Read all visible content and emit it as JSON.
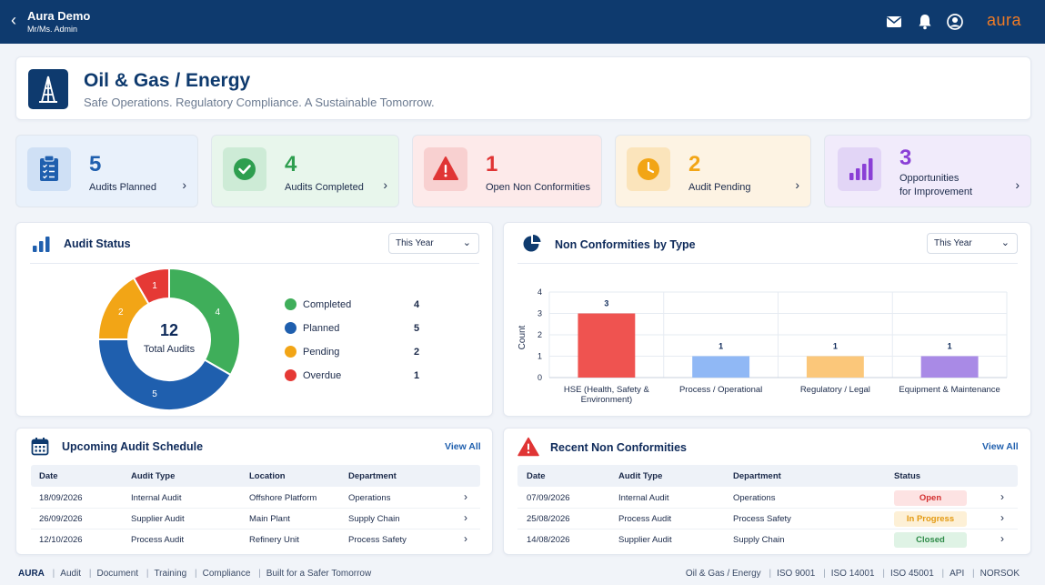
{
  "topbar": {
    "title": "Aura Demo",
    "subtitle": "Mr/Ms. Admin",
    "brand": "aura",
    "icons": [
      "mail-icon",
      "bell-icon",
      "user-icon"
    ]
  },
  "header": {
    "title": "Oil & Gas / Energy",
    "tagline": "Safe Operations. Regulatory Compliance. A Sustainable Tomorrow."
  },
  "kpis": [
    {
      "value": "5",
      "label": "Audits Planned",
      "label2": "",
      "color": "#1f5fae",
      "bg": "#e9f1fb",
      "icon_bg": "#cfe0f5",
      "icon": "clipboard-icon"
    },
    {
      "value": "4",
      "label": "Audits Completed",
      "label2": "",
      "color": "#2e9e4f",
      "bg": "#e8f6ec",
      "icon_bg": "#cdebd6",
      "icon": "check-circle-icon"
    },
    {
      "value": "1",
      "label": "Open Non Conformities",
      "label2": "",
      "color": "#e03535",
      "bg": "#fdeaea",
      "icon_bg": "#f8d0d0",
      "icon": "warning-icon"
    },
    {
      "value": "2",
      "label": "Audit Pending",
      "label2": "",
      "color": "#f2a516",
      "bg": "#fdf3e3",
      "icon_bg": "#fbe4bb",
      "icon": "clock-icon"
    },
    {
      "value": "3",
      "label": "Opportunities",
      "label2": "for Improvement",
      "color": "#8a3fd6",
      "bg": "#f1ebfb",
      "icon_bg": "#e2d5f6",
      "icon": "bar-chart-icon"
    }
  ],
  "audit_status": {
    "title": "Audit Status",
    "filter": "This Year",
    "center_value": "12",
    "center_label": "Total Audits"
  },
  "nc_by_type": {
    "title": "Non Conformities by Type",
    "filter": "This Year"
  },
  "chart_data": [
    {
      "type": "pie",
      "categories": [
        "Completed",
        "Planned",
        "Pending",
        "Overdue"
      ],
      "values": [
        4,
        5,
        2,
        1
      ],
      "colors": [
        "#3fae5a",
        "#1f5fae",
        "#f2a516",
        "#e53935"
      ],
      "title": "Audit Status",
      "legend": "right"
    },
    {
      "type": "bar",
      "categories": [
        "HSE (Health, Safety & Environment)",
        "Process / Operational",
        "Regulatory / Legal",
        "Equipment & Maintenance"
      ],
      "category_lines": [
        [
          "HSE (Health, Safety &",
          "Environment)"
        ],
        [
          "Process / Operational"
        ],
        [
          "Regulatory / Legal"
        ],
        [
          "Equipment & Maintenance"
        ]
      ],
      "values": [
        3,
        1,
        1,
        1
      ],
      "colors": [
        "#ef5350",
        "#90b8f5",
        "#fbc77a",
        "#a98ae6"
      ],
      "title": "Non Conformities by Type",
      "xlabel": "",
      "ylabel": "Count",
      "ylim": [
        0,
        4
      ],
      "yticks": [
        "0",
        "1",
        "2",
        "3",
        "4"
      ],
      "grid": true
    }
  ],
  "schedule": {
    "title": "Upcoming Audit Schedule",
    "view_all": "View All",
    "headers": [
      "Date",
      "Audit Type",
      "Location",
      "Department"
    ],
    "rows": [
      [
        "18/09/2026",
        "Internal Audit",
        "Offshore Platform",
        "Operations"
      ],
      [
        "26/09/2026",
        "Supplier Audit",
        "Main Plant",
        "Supply Chain"
      ],
      [
        "12/10/2026",
        "Process Audit",
        "Refinery Unit",
        "Process Safety"
      ]
    ]
  },
  "recent_nc": {
    "title": "Recent Non Conformities",
    "view_all": "View All",
    "headers": [
      "Date",
      "Audit Type",
      "Department",
      "Status"
    ],
    "rows": [
      [
        "07/09/2026",
        "Internal Audit",
        "Operations",
        "Open"
      ],
      [
        "25/08/2026",
        "Process Audit",
        "Process Safety",
        "In Progress"
      ],
      [
        "14/08/2026",
        "Supplier Audit",
        "Supply Chain",
        "Closed"
      ]
    ],
    "status_colors": {
      "Open": {
        "bg": "#fde3e3",
        "fg": "#d32f2f"
      },
      "In Progress": {
        "bg": "#fdf0d6",
        "fg": "#e39a12"
      },
      "Closed": {
        "bg": "#dff3e5",
        "fg": "#2e8b48"
      }
    }
  },
  "footer": {
    "brand": "AURA",
    "left_items": [
      "Audit",
      "Document",
      "Training",
      "Compliance",
      "Built for a Safer Tomorrow"
    ],
    "right_items": [
      "Oil & Gas / Energy",
      "ISO 9001",
      "ISO 14001",
      "ISO 45001",
      "API",
      "NORSOK"
    ]
  }
}
